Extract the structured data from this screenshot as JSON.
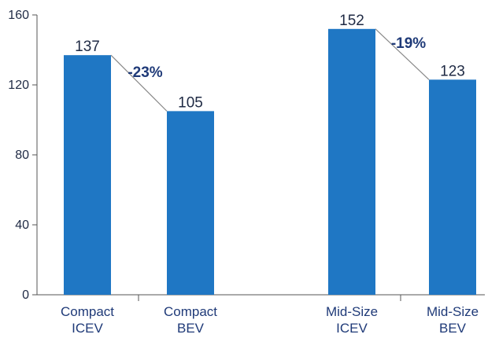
{
  "chart_data": {
    "type": "bar",
    "categories": [
      "Compact ICEV",
      "Compact BEV",
      "Mid-Size ICEV",
      "Mid-Size BEV"
    ],
    "category_lines": [
      [
        "Compact",
        "ICEV"
      ],
      [
        "Compact",
        "BEV"
      ],
      [
        "Mid-Size",
        "ICEV"
      ],
      [
        "Mid-Size",
        "BEV"
      ]
    ],
    "values": [
      137,
      105,
      152,
      123
    ],
    "data_labels": [
      "137",
      "105",
      "152",
      "123"
    ],
    "ylim": [
      0,
      160
    ],
    "yticks": [
      0,
      40,
      80,
      120,
      160
    ],
    "ytick_labels": [
      "0",
      "40",
      "80",
      "120",
      "160"
    ],
    "grid": false,
    "bar_color": "#1f77c4",
    "axis_color": "#555555",
    "connector_color": "#888888",
    "annotations": [
      {
        "text": "-23%",
        "from": 0,
        "to": 1
      },
      {
        "text": "-19%",
        "from": 2,
        "to": 3
      }
    ]
  }
}
